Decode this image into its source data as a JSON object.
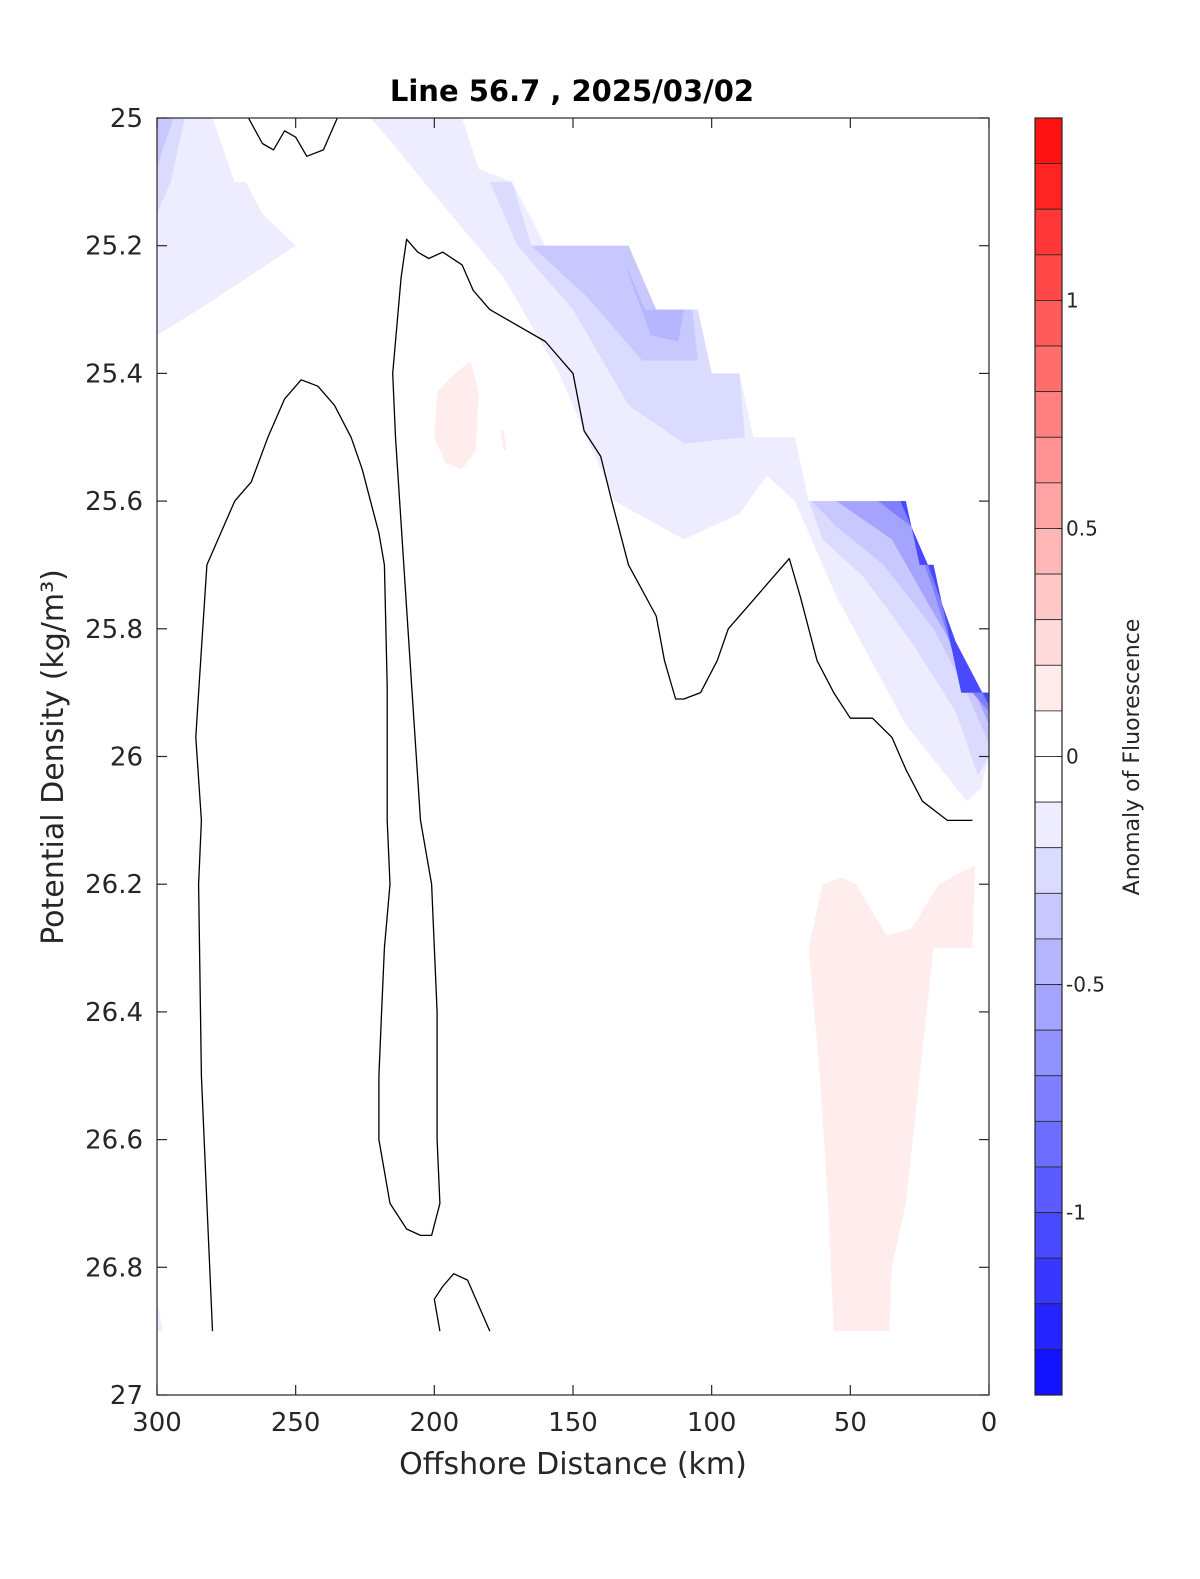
{
  "chart_data": {
    "type": "contour",
    "title": "Line 56.7 , 2025/03/02",
    "xlabel": "Offshore Distance (km)",
    "ylabel": "Potential Density (kg/m³)",
    "xlim": [
      300,
      0
    ],
    "ylim": [
      25,
      27
    ],
    "x_direction": "reversed",
    "y_direction": "reversed",
    "xticks": [
      300,
      250,
      200,
      150,
      100,
      50,
      0
    ],
    "yticks": [
      25,
      25.2,
      25.4,
      25.6,
      25.8,
      26,
      26.2,
      26.4,
      26.6,
      26.8,
      27
    ],
    "grid": false,
    "colorbar": {
      "label": "Anomaly of Fluorescence",
      "min": -1.4,
      "max": 1.4,
      "step": 0.1,
      "ticks": [
        1,
        0.5,
        0,
        -0.5,
        -1
      ],
      "tick_labels": [
        "1",
        "0.5",
        "0",
        "-0.5",
        "-1"
      ],
      "colormap": "blue-white-red"
    },
    "colors": {
      "negative_max": "#0000ff",
      "positive_max": "#ff0000",
      "neutral": "#ffffff",
      "contour_line": "#000000"
    },
    "filled_regions": [
      {
        "level": -0.1,
        "points": [
          [
            300,
            25
          ],
          [
            280,
            25
          ],
          [
            272,
            25.1
          ],
          [
            268,
            25.1
          ],
          [
            262,
            25.15
          ],
          [
            250,
            25.2
          ],
          [
            285,
            25.3
          ],
          [
            300,
            25.34
          ]
        ]
      },
      {
        "level": -0.2,
        "points": [
          [
            300,
            25
          ],
          [
            290,
            25
          ],
          [
            295,
            25.1
          ],
          [
            300,
            25.15
          ]
        ]
      },
      {
        "level": -0.3,
        "points": [
          [
            300,
            25
          ],
          [
            294,
            25
          ],
          [
            298,
            25.05
          ],
          [
            300,
            25.08
          ]
        ]
      },
      {
        "level": -0.1,
        "points": [
          [
            223,
            25
          ],
          [
            190,
            25
          ],
          [
            184,
            25.08
          ],
          [
            172,
            25.1
          ],
          [
            160,
            25.2
          ],
          [
            130,
            25.2
          ],
          [
            120,
            25.3
          ],
          [
            105,
            25.3
          ],
          [
            100,
            25.4
          ],
          [
            90,
            25.4
          ],
          [
            85,
            25.5
          ],
          [
            70,
            25.5
          ],
          [
            65,
            25.6
          ],
          [
            30,
            25.6
          ],
          [
            25,
            25.7
          ],
          [
            20,
            25.7
          ],
          [
            10,
            25.9
          ],
          [
            0,
            25.9
          ],
          [
            0,
            26
          ],
          [
            3,
            26.05
          ],
          [
            8,
            26.07
          ],
          [
            30,
            25.95
          ],
          [
            55,
            25.75
          ],
          [
            70,
            25.6
          ],
          [
            80,
            25.56
          ],
          [
            90,
            25.62
          ],
          [
            110,
            25.66
          ],
          [
            135,
            25.6
          ],
          [
            155,
            25.4
          ],
          [
            175,
            25.25
          ],
          [
            200,
            25.12
          ],
          [
            215,
            25.04
          ]
        ]
      },
      {
        "level": -0.2,
        "points": [
          [
            180,
            25.1
          ],
          [
            172,
            25.1
          ],
          [
            165,
            25.2
          ],
          [
            130,
            25.2
          ],
          [
            120,
            25.3
          ],
          [
            105,
            25.3
          ],
          [
            100,
            25.4
          ],
          [
            90,
            25.4
          ],
          [
            88,
            25.5
          ],
          [
            110,
            25.51
          ],
          [
            130,
            25.45
          ],
          [
            150,
            25.3
          ],
          [
            170,
            25.2
          ]
        ]
      },
      {
        "level": -0.3,
        "points": [
          [
            165,
            25.2
          ],
          [
            130,
            25.2
          ],
          [
            120,
            25.3
          ],
          [
            107,
            25.3
          ],
          [
            105,
            25.38
          ],
          [
            125,
            25.38
          ],
          [
            145,
            25.28
          ],
          [
            160,
            25.22
          ]
        ]
      },
      {
        "level": -0.4,
        "points": [
          [
            132,
            25.22
          ],
          [
            124,
            25.3
          ],
          [
            110,
            25.3
          ],
          [
            112,
            25.35
          ],
          [
            122,
            25.34
          ]
        ]
      },
      {
        "level": -0.2,
        "points": [
          [
            65,
            25.6
          ],
          [
            30,
            25.6
          ],
          [
            25,
            25.7
          ],
          [
            20,
            25.7
          ],
          [
            10,
            25.9
          ],
          [
            0,
            25.9
          ],
          [
            0,
            26
          ],
          [
            4,
            26.03
          ],
          [
            12,
            25.93
          ],
          [
            28,
            25.82
          ],
          [
            45,
            25.72
          ],
          [
            60,
            25.66
          ]
        ]
      },
      {
        "level": -0.3,
        "points": [
          [
            64,
            25.6
          ],
          [
            30,
            25.6
          ],
          [
            25,
            25.7
          ],
          [
            20,
            25.7
          ],
          [
            10,
            25.9
          ],
          [
            0,
            25.9
          ],
          [
            0,
            25.98
          ],
          [
            8,
            25.9
          ],
          [
            20,
            25.8
          ],
          [
            38,
            25.7
          ],
          [
            55,
            25.64
          ]
        ]
      },
      {
        "level": -0.5,
        "points": [
          [
            55,
            25.6
          ],
          [
            30,
            25.6
          ],
          [
            25,
            25.7
          ],
          [
            20,
            25.7
          ],
          [
            10,
            25.9
          ],
          [
            0,
            25.9
          ],
          [
            0,
            25.95
          ],
          [
            10,
            25.85
          ],
          [
            22,
            25.76
          ],
          [
            35,
            25.66
          ]
        ]
      },
      {
        "level": -0.7,
        "points": [
          [
            40,
            25.6
          ],
          [
            30,
            25.6
          ],
          [
            25,
            25.7
          ],
          [
            20,
            25.7
          ],
          [
            10,
            25.9
          ],
          [
            0,
            25.9
          ],
          [
            0,
            25.93
          ],
          [
            10,
            25.88
          ],
          [
            20,
            25.74
          ],
          [
            28,
            25.64
          ]
        ]
      },
      {
        "level": -1.0,
        "points": [
          [
            32,
            25.6
          ],
          [
            30,
            25.6
          ],
          [
            25,
            25.7
          ],
          [
            20,
            25.7
          ],
          [
            10,
            25.9
          ],
          [
            0,
            25.9
          ],
          [
            0,
            25.92
          ],
          [
            12,
            25.82
          ],
          [
            22,
            25.7
          ],
          [
            30,
            25.62
          ]
        ]
      },
      {
        "level": 0.1,
        "points": [
          [
            195,
            25.41
          ],
          [
            187,
            25.38
          ],
          [
            184,
            25.43
          ],
          [
            185,
            25.52
          ],
          [
            190,
            25.55
          ],
          [
            196,
            25.54
          ],
          [
            200,
            25.5
          ],
          [
            199,
            25.43
          ]
        ]
      },
      {
        "level": 0.1,
        "points": [
          [
            176,
            25.49
          ],
          [
            175,
            25.49
          ],
          [
            174,
            25.52
          ],
          [
            175,
            25.52
          ]
        ]
      },
      {
        "level": 0.1,
        "points": [
          [
            65,
            26.3
          ],
          [
            60,
            26.2
          ],
          [
            53,
            26.19
          ],
          [
            48,
            26.2
          ],
          [
            37,
            26.28
          ],
          [
            28,
            26.27
          ],
          [
            18,
            26.2
          ],
          [
            5,
            26.17
          ],
          [
            6,
            26.3
          ],
          [
            13,
            26.3
          ],
          [
            20,
            26.3
          ],
          [
            25,
            26.5
          ],
          [
            30,
            26.7
          ],
          [
            35,
            26.8
          ],
          [
            36,
            26.9
          ],
          [
            56,
            26.9
          ],
          [
            58,
            26.7
          ],
          [
            61,
            26.5
          ]
        ]
      },
      {
        "level": -0.1,
        "points": [
          [
            300,
            26.85
          ],
          [
            298,
            26.9
          ],
          [
            300,
            26.9
          ]
        ]
      }
    ],
    "contour_lines": [
      {
        "level": 0,
        "points": [
          [
            267,
            25
          ],
          [
            262,
            25.04
          ],
          [
            258,
            25.05
          ],
          [
            254,
            25.02
          ],
          [
            250,
            25.03
          ],
          [
            246,
            25.06
          ],
          [
            240,
            25.05
          ],
          [
            235,
            25
          ]
        ]
      },
      {
        "level": 0,
        "points": [
          [
            280,
            26.9
          ],
          [
            282,
            26.7
          ],
          [
            284,
            26.5
          ],
          [
            285,
            26.2
          ],
          [
            284,
            26.1
          ],
          [
            286,
            25.97
          ],
          [
            285,
            25.9
          ],
          [
            282,
            25.7
          ],
          [
            278,
            25.66
          ],
          [
            272,
            25.6
          ],
          [
            266,
            25.57
          ],
          [
            260,
            25.5
          ],
          [
            254,
            25.44
          ],
          [
            248,
            25.41
          ],
          [
            242,
            25.42
          ],
          [
            236,
            25.45
          ],
          [
            230,
            25.5
          ],
          [
            226,
            25.55
          ],
          [
            223,
            25.6
          ],
          [
            220,
            25.65
          ],
          [
            218,
            25.7
          ],
          [
            217,
            25.89
          ],
          [
            217,
            26.1
          ],
          [
            216,
            26.2
          ],
          [
            218,
            26.3
          ],
          [
            219,
            26.4
          ],
          [
            220,
            26.5
          ],
          [
            220,
            26.6
          ],
          [
            216,
            26.7
          ],
          [
            210,
            26.74
          ],
          [
            205,
            26.75
          ],
          [
            201,
            26.75
          ],
          [
            198,
            26.7
          ],
          [
            199,
            26.6
          ],
          [
            199,
            26.4
          ],
          [
            201,
            26.2
          ],
          [
            205,
            26.1
          ],
          [
            208,
            25.9
          ],
          [
            211,
            25.7
          ],
          [
            214,
            25.5
          ],
          [
            215,
            25.4
          ],
          [
            212,
            25.25
          ],
          [
            210,
            25.19
          ],
          [
            206,
            25.21
          ],
          [
            202,
            25.22
          ],
          [
            197,
            25.21
          ],
          [
            190,
            25.23
          ],
          [
            186,
            25.27
          ],
          [
            180,
            25.3
          ],
          [
            172,
            25.32
          ],
          [
            160,
            25.35
          ],
          [
            150,
            25.4
          ],
          [
            146,
            25.49
          ],
          [
            140,
            25.53
          ],
          [
            136,
            25.6
          ],
          [
            130,
            25.7
          ],
          [
            120,
            25.78
          ],
          [
            117,
            25.85
          ],
          [
            113,
            25.91
          ],
          [
            110,
            25.91
          ],
          [
            104,
            25.9
          ],
          [
            98,
            25.85
          ],
          [
            94,
            25.8
          ],
          [
            86,
            25.76
          ],
          [
            80,
            25.73
          ],
          [
            72,
            25.69
          ],
          [
            68,
            25.75
          ],
          [
            62,
            25.85
          ],
          [
            56,
            25.9
          ],
          [
            50,
            25.94
          ],
          [
            42,
            25.94
          ],
          [
            35,
            25.97
          ],
          [
            30,
            26.02
          ],
          [
            24,
            26.07
          ],
          [
            15,
            26.1
          ],
          [
            10,
            26.1
          ],
          [
            6,
            26.1
          ]
        ]
      },
      {
        "level": 0,
        "points": [
          [
            198,
            26.9
          ],
          [
            200,
            26.85
          ],
          [
            197,
            26.83
          ],
          [
            193,
            26.81
          ],
          [
            188,
            26.82
          ],
          [
            185,
            26.85
          ],
          [
            180,
            26.9
          ]
        ]
      }
    ]
  }
}
